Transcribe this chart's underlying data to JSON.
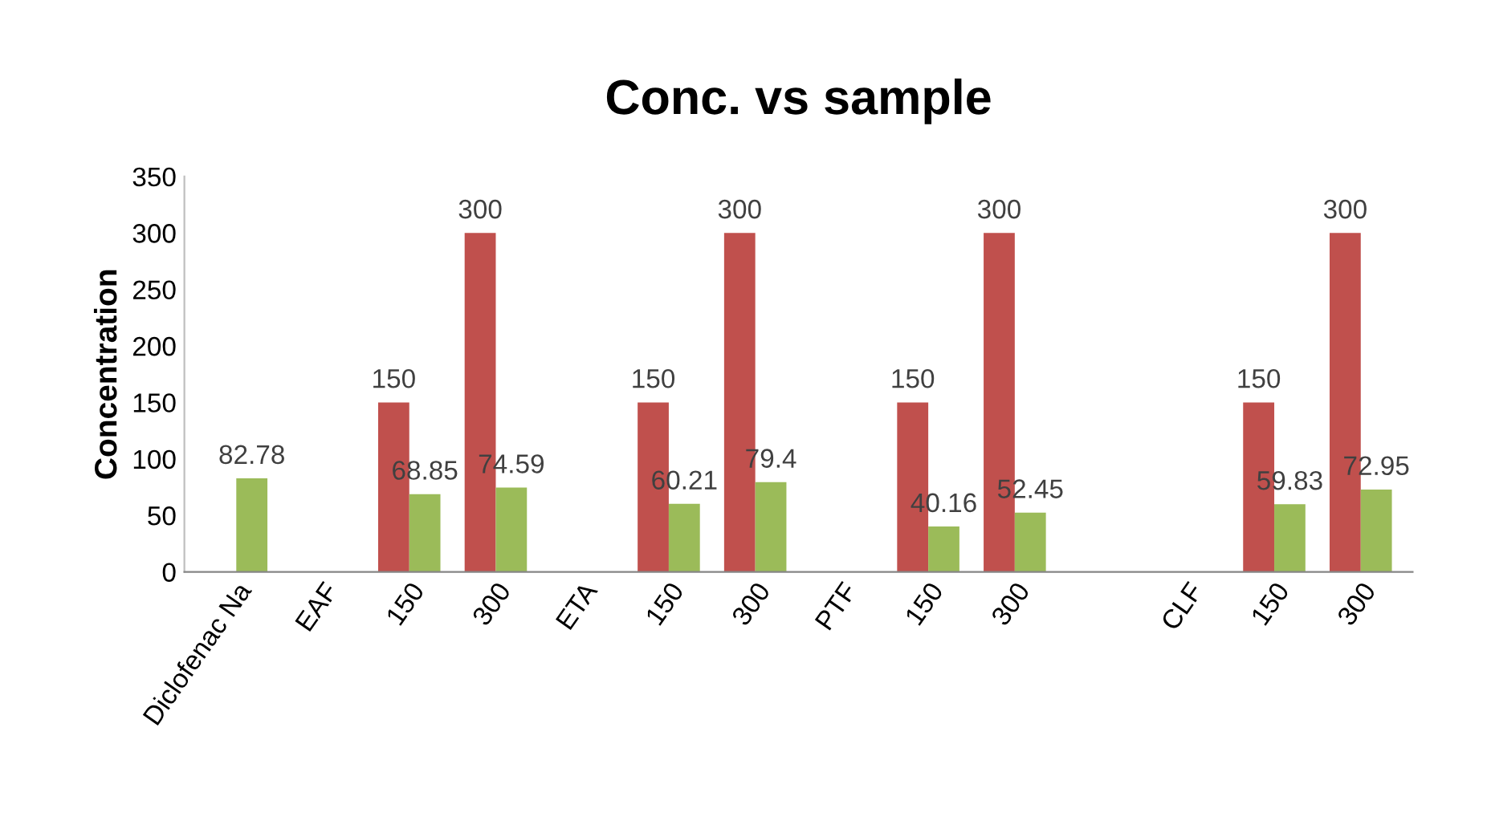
{
  "chart_data": {
    "type": "bar",
    "title": "Conc. vs sample",
    "ylabel": "Concentration",
    "categories": [
      "Diclofenac Na",
      "EAF",
      "150",
      "300",
      "ETA",
      "150",
      "300",
      "PTF",
      "150",
      "300",
      null,
      "CLF",
      "150",
      "300"
    ],
    "series": [
      {
        "color": "#c0504d",
        "values": [
          null,
          null,
          150,
          300,
          null,
          150,
          300,
          null,
          150,
          300,
          null,
          null,
          150,
          300
        ]
      },
      {
        "color": "#9bbb59",
        "values": [
          82.78,
          null,
          68.85,
          74.59,
          null,
          60.21,
          79.4,
          null,
          40.16,
          52.45,
          null,
          null,
          59.83,
          72.95
        ]
      }
    ],
    "ylim": [
      0,
      350
    ],
    "yticks": [
      0,
      50,
      100,
      150,
      200,
      250,
      300,
      350
    ],
    "grid": false,
    "legend": false,
    "data_labels": true
  }
}
